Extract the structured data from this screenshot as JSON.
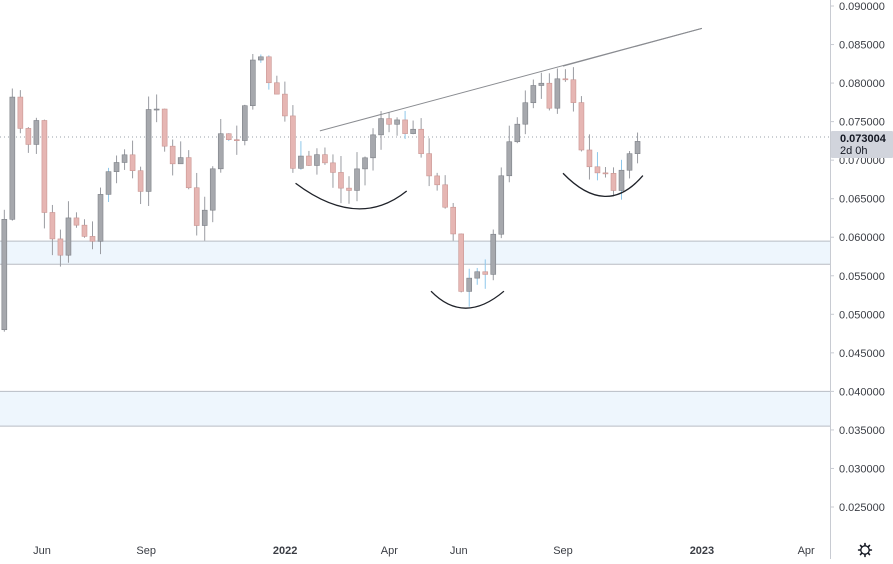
{
  "chart": {
    "current_price_label": "0.073004",
    "countdown_label": "2d 0h"
  },
  "colors": {
    "up_candle": "#a6a8ad",
    "down_candle": "#e6b6b3",
    "wick": "#9a9ca2",
    "bar_accent_blue": "#8ec7ea",
    "zone_fill": "#eef6fd",
    "zone_border": "#b8bcc4",
    "trendline": "#8a8c91",
    "pattern_arc": "#1f2229",
    "axis_text": "#3a3d44",
    "price_marker_bg": "#d1d4dc",
    "axis_border": "#c8cbd2"
  },
  "icons": {
    "settings": "gear-icon"
  },
  "chart_data": {
    "type": "candlestick",
    "y_axis": {
      "side": "right",
      "range": [
        0.0205,
        0.0915
      ],
      "tick_labels": [
        "0.090000",
        "0.085000",
        "0.080000",
        "0.075000",
        "0.070000",
        "0.065000",
        "0.060000",
        "0.055000",
        "0.050000",
        "0.045000",
        "0.040000",
        "0.035000",
        "0.030000",
        "0.025000"
      ]
    },
    "x_axis": {
      "range_months": [
        -8.25,
        8.05
      ],
      "ticks": [
        {
          "label": "Jun",
          "m": -7
        },
        {
          "label": "Sep",
          "m": -4
        },
        {
          "label": "2022",
          "m": 0
        },
        {
          "label": "Apr",
          "m": 3
        },
        {
          "label": "Jun",
          "m": 5
        },
        {
          "label": "Sep",
          "m": 8
        }
      ],
      "future_ticks": [
        {
          "label": "2023",
          "m": 12
        },
        {
          "label": "Apr",
          "m": 15
        }
      ],
      "note": "m = months from Jan 2022"
    },
    "last_price": 0.073004,
    "price_zones": [
      {
        "low": 0.0565,
        "high": 0.0595
      },
      {
        "low": 0.0355,
        "high": 0.04
      }
    ],
    "trendlines": [
      {
        "from": {
          "m": 1.0,
          "price": 0.0738
        },
        "to": {
          "m": 12.0,
          "price": 0.0871
        }
      },
      {
        "from": {
          "m": 8.0,
          "price": 0.0822
        },
        "to": {
          "m": 12.0,
          "price": 0.0871
        }
      }
    ],
    "pattern_arcs": [
      {
        "name": "left-shoulder",
        "start": {
          "m": 0.3,
          "price": 0.067
        },
        "bottom": {
          "m": 2.0,
          "price": 0.0637
        },
        "end": {
          "m": 3.5,
          "price": 0.066
        }
      },
      {
        "name": "head",
        "start": {
          "m": 4.2,
          "price": 0.053
        },
        "bottom": {
          "m": 5.2,
          "price": 0.0508
        },
        "end": {
          "m": 6.3,
          "price": 0.053
        }
      },
      {
        "name": "right-shoulder",
        "start": {
          "m": 8.0,
          "price": 0.0683
        },
        "bottom": {
          "m": 9.2,
          "price": 0.0653
        },
        "end": {
          "m": 10.3,
          "price": 0.068
        }
      }
    ],
    "anchors": [
      {
        "m": -8.2,
        "price": 0.048
      },
      {
        "m": -8.0,
        "price": 0.0595
      },
      {
        "m": -7.8,
        "price": 0.078
      },
      {
        "m": -7.6,
        "price": 0.079
      },
      {
        "m": -7.4,
        "price": 0.068
      },
      {
        "m": -7.2,
        "price": 0.074
      },
      {
        "m": -7.0,
        "price": 0.075
      },
      {
        "m": -6.8,
        "price": 0.063
      },
      {
        "m": -6.6,
        "price": 0.061
      },
      {
        "m": -6.4,
        "price": 0.056
      },
      {
        "m": -6.2,
        "price": 0.064
      },
      {
        "m": -6.0,
        "price": 0.062
      },
      {
        "m": -5.7,
        "price": 0.0605
      },
      {
        "m": -5.4,
        "price": 0.06
      },
      {
        "m": -5.1,
        "price": 0.068
      },
      {
        "m": -4.8,
        "price": 0.071
      },
      {
        "m": -4.6,
        "price": 0.07
      },
      {
        "m": -4.3,
        "price": 0.069
      },
      {
        "m": -4.0,
        "price": 0.066
      },
      {
        "m": -3.8,
        "price": 0.078
      },
      {
        "m": -3.6,
        "price": 0.076
      },
      {
        "m": -3.4,
        "price": 0.072
      },
      {
        "m": -3.1,
        "price": 0.07
      },
      {
        "m": -2.9,
        "price": 0.071
      },
      {
        "m": -2.6,
        "price": 0.065
      },
      {
        "m": -2.4,
        "price": 0.061
      },
      {
        "m": -2.1,
        "price": 0.066
      },
      {
        "m": -1.9,
        "price": 0.072
      },
      {
        "m": -1.6,
        "price": 0.074
      },
      {
        "m": -1.3,
        "price": 0.072
      },
      {
        "m": -1.1,
        "price": 0.076
      },
      {
        "m": -0.9,
        "price": 0.08
      },
      {
        "m": -0.75,
        "price": 0.087
      },
      {
        "m": -0.6,
        "price": 0.083
      },
      {
        "m": -0.4,
        "price": 0.08
      },
      {
        "m": -0.2,
        "price": 0.079
      },
      {
        "m": 0.0,
        "price": 0.078
      },
      {
        "m": 0.2,
        "price": 0.074
      },
      {
        "m": 0.35,
        "price": 0.068
      },
      {
        "m": 0.45,
        "price": 0.0655
      },
      {
        "m": 0.6,
        "price": 0.073
      },
      {
        "m": 0.8,
        "price": 0.07
      },
      {
        "m": 1.0,
        "price": 0.071
      },
      {
        "m": 1.2,
        "price": 0.07
      },
      {
        "m": 1.5,
        "price": 0.068
      },
      {
        "m": 1.7,
        "price": 0.0665
      },
      {
        "m": 2.0,
        "price": 0.066
      },
      {
        "m": 2.2,
        "price": 0.069
      },
      {
        "m": 2.5,
        "price": 0.071
      },
      {
        "m": 2.8,
        "price": 0.075
      },
      {
        "m": 3.0,
        "price": 0.076
      },
      {
        "m": 3.3,
        "price": 0.075
      },
      {
        "m": 3.6,
        "price": 0.074
      },
      {
        "m": 4.0,
        "price": 0.072
      },
      {
        "m": 4.2,
        "price": 0.069
      },
      {
        "m": 4.5,
        "price": 0.066
      },
      {
        "m": 4.8,
        "price": 0.062
      },
      {
        "m": 5.0,
        "price": 0.06
      },
      {
        "m": 5.15,
        "price": 0.053
      },
      {
        "m": 5.3,
        "price": 0.0545
      },
      {
        "m": 5.5,
        "price": 0.055
      },
      {
        "m": 5.7,
        "price": 0.056
      },
      {
        "m": 6.0,
        "price": 0.056
      },
      {
        "m": 6.2,
        "price": 0.064
      },
      {
        "m": 6.4,
        "price": 0.069
      },
      {
        "m": 6.6,
        "price": 0.072
      },
      {
        "m": 6.8,
        "price": 0.074
      },
      {
        "m": 7.0,
        "price": 0.078
      },
      {
        "m": 7.3,
        "price": 0.0805
      },
      {
        "m": 7.5,
        "price": 0.079
      },
      {
        "m": 7.7,
        "price": 0.077
      },
      {
        "m": 8.0,
        "price": 0.08
      },
      {
        "m": 8.3,
        "price": 0.0805
      },
      {
        "m": 8.5,
        "price": 0.074
      },
      {
        "m": 8.7,
        "price": 0.07
      },
      {
        "m": 9.0,
        "price": 0.069
      },
      {
        "m": 9.3,
        "price": 0.0675
      },
      {
        "m": 9.6,
        "price": 0.067
      },
      {
        "m": 9.8,
        "price": 0.068
      },
      {
        "m": 10.0,
        "price": 0.07
      },
      {
        "m": 10.1,
        "price": 0.073
      }
    ]
  }
}
